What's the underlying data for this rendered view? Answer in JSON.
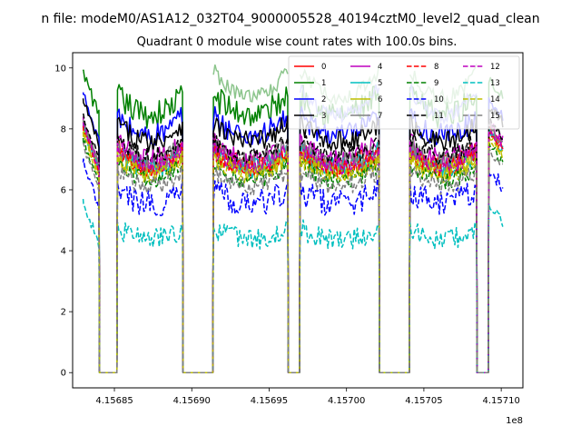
{
  "figure": {
    "suptitle": "n file: modeM0/AS1A12_032T04_9000005528_40194cztM0_level2_quad_clean",
    "title": "Quadrant 0 module wise count rates with 100.0s bins.",
    "offset_label": "1e8"
  },
  "chart_data": {
    "type": "line",
    "xlim": [
      4.156823,
      4.157114
    ],
    "ylim": [
      -0.5,
      10.5
    ],
    "x_ticks": [
      {
        "value": 4.15685,
        "label": "4.15685"
      },
      {
        "value": 4.1569,
        "label": "4.15690"
      },
      {
        "value": 4.15695,
        "label": "4.15695"
      },
      {
        "value": 4.157,
        "label": "4.15700"
      },
      {
        "value": 4.15705,
        "label": "4.15705"
      },
      {
        "value": 4.1571,
        "label": "4.15710"
      }
    ],
    "y_ticks": [
      {
        "value": 0,
        "label": "0"
      },
      {
        "value": 2,
        "label": "2"
      },
      {
        "value": 4,
        "label": "4"
      },
      {
        "value": 6,
        "label": "6"
      },
      {
        "value": 8,
        "label": "8"
      },
      {
        "value": 10,
        "label": "10"
      }
    ],
    "grid": false,
    "legend": {
      "placement": "top-right",
      "columns": 4
    },
    "time_segments": [
      {
        "start": 4.15683,
        "end": 4.15684
      },
      {
        "start": 4.156852,
        "end": 4.156894
      },
      {
        "start": 4.156914,
        "end": 4.156962
      },
      {
        "start": 4.15697,
        "end": 4.157021
      },
      {
        "start": 4.157041,
        "end": 4.157084
      },
      {
        "start": 4.157092,
        "end": 4.157101
      }
    ],
    "gap_regions": [
      {
        "start": 4.156841,
        "end": 4.156851
      },
      {
        "start": 4.156896,
        "end": 4.156912
      },
      {
        "start": 4.156963,
        "end": 4.156969
      },
      {
        "start": 4.157023,
        "end": 4.157039
      },
      {
        "start": 4.157086,
        "end": 4.157091
      }
    ],
    "x_step": 1e-06,
    "series": [
      {
        "name": "0",
        "color": "#ff0000",
        "dash": "solid",
        "level": 7.0,
        "noise": 0.35
      },
      {
        "name": "1",
        "color": "#008000",
        "dash": "solid",
        "level": 8.7,
        "noise": 0.45
      },
      {
        "name": "2",
        "color": "#0000ff",
        "dash": "solid",
        "level": 8.0,
        "noise": 0.4
      },
      {
        "name": "3",
        "color": "#000000",
        "dash": "solid",
        "level": 7.8,
        "noise": 0.35
      },
      {
        "name": "4",
        "color": "#bf00bf",
        "dash": "solid",
        "level": 7.2,
        "noise": 0.35
      },
      {
        "name": "5",
        "color": "#00bfbf",
        "dash": "solid",
        "level": 6.9,
        "noise": 0.35
      },
      {
        "name": "6",
        "color": "#bfbf00",
        "dash": "solid",
        "level": 6.8,
        "noise": 0.35
      },
      {
        "name": "7",
        "color": "#808080",
        "dash": "solid",
        "level": 7.1,
        "noise": 0.35
      },
      {
        "name": "8",
        "color": "#ff0000",
        "dash": "dashed",
        "level": 6.9,
        "noise": 0.3
      },
      {
        "name": "9",
        "color": "#008000",
        "dash": "dashed",
        "level": 6.5,
        "noise": 0.3
      },
      {
        "name": "10",
        "color": "#0000ff",
        "dash": "dashed",
        "level": 5.7,
        "noise": 0.45
      },
      {
        "name": "11",
        "color": "#000000",
        "dash": "dashed",
        "level": 7.3,
        "noise": 0.3
      },
      {
        "name": "12",
        "color": "#bf00bf",
        "dash": "dashed",
        "level": 7.0,
        "noise": 0.3
      },
      {
        "name": "13",
        "color": "#00bfbf",
        "dash": "dashed",
        "level": 4.5,
        "noise": 0.35
      },
      {
        "name": "14",
        "color": "#bfbf00",
        "dash": "dashed",
        "level": 6.7,
        "noise": 0.3
      },
      {
        "name": "15",
        "color": "#808080",
        "dash": "dashed",
        "level": 6.3,
        "noise": 0.3
      }
    ],
    "overlay_lines": [
      {
        "name": "overlay-light-green",
        "color": "#7fbf7f",
        "level": 9.4,
        "segments": [
          2,
          3,
          4
        ]
      },
      {
        "name": "overlay-light-blue",
        "color": "#7f7fff",
        "level": 8.8,
        "segments": [
          3,
          4
        ]
      }
    ]
  }
}
